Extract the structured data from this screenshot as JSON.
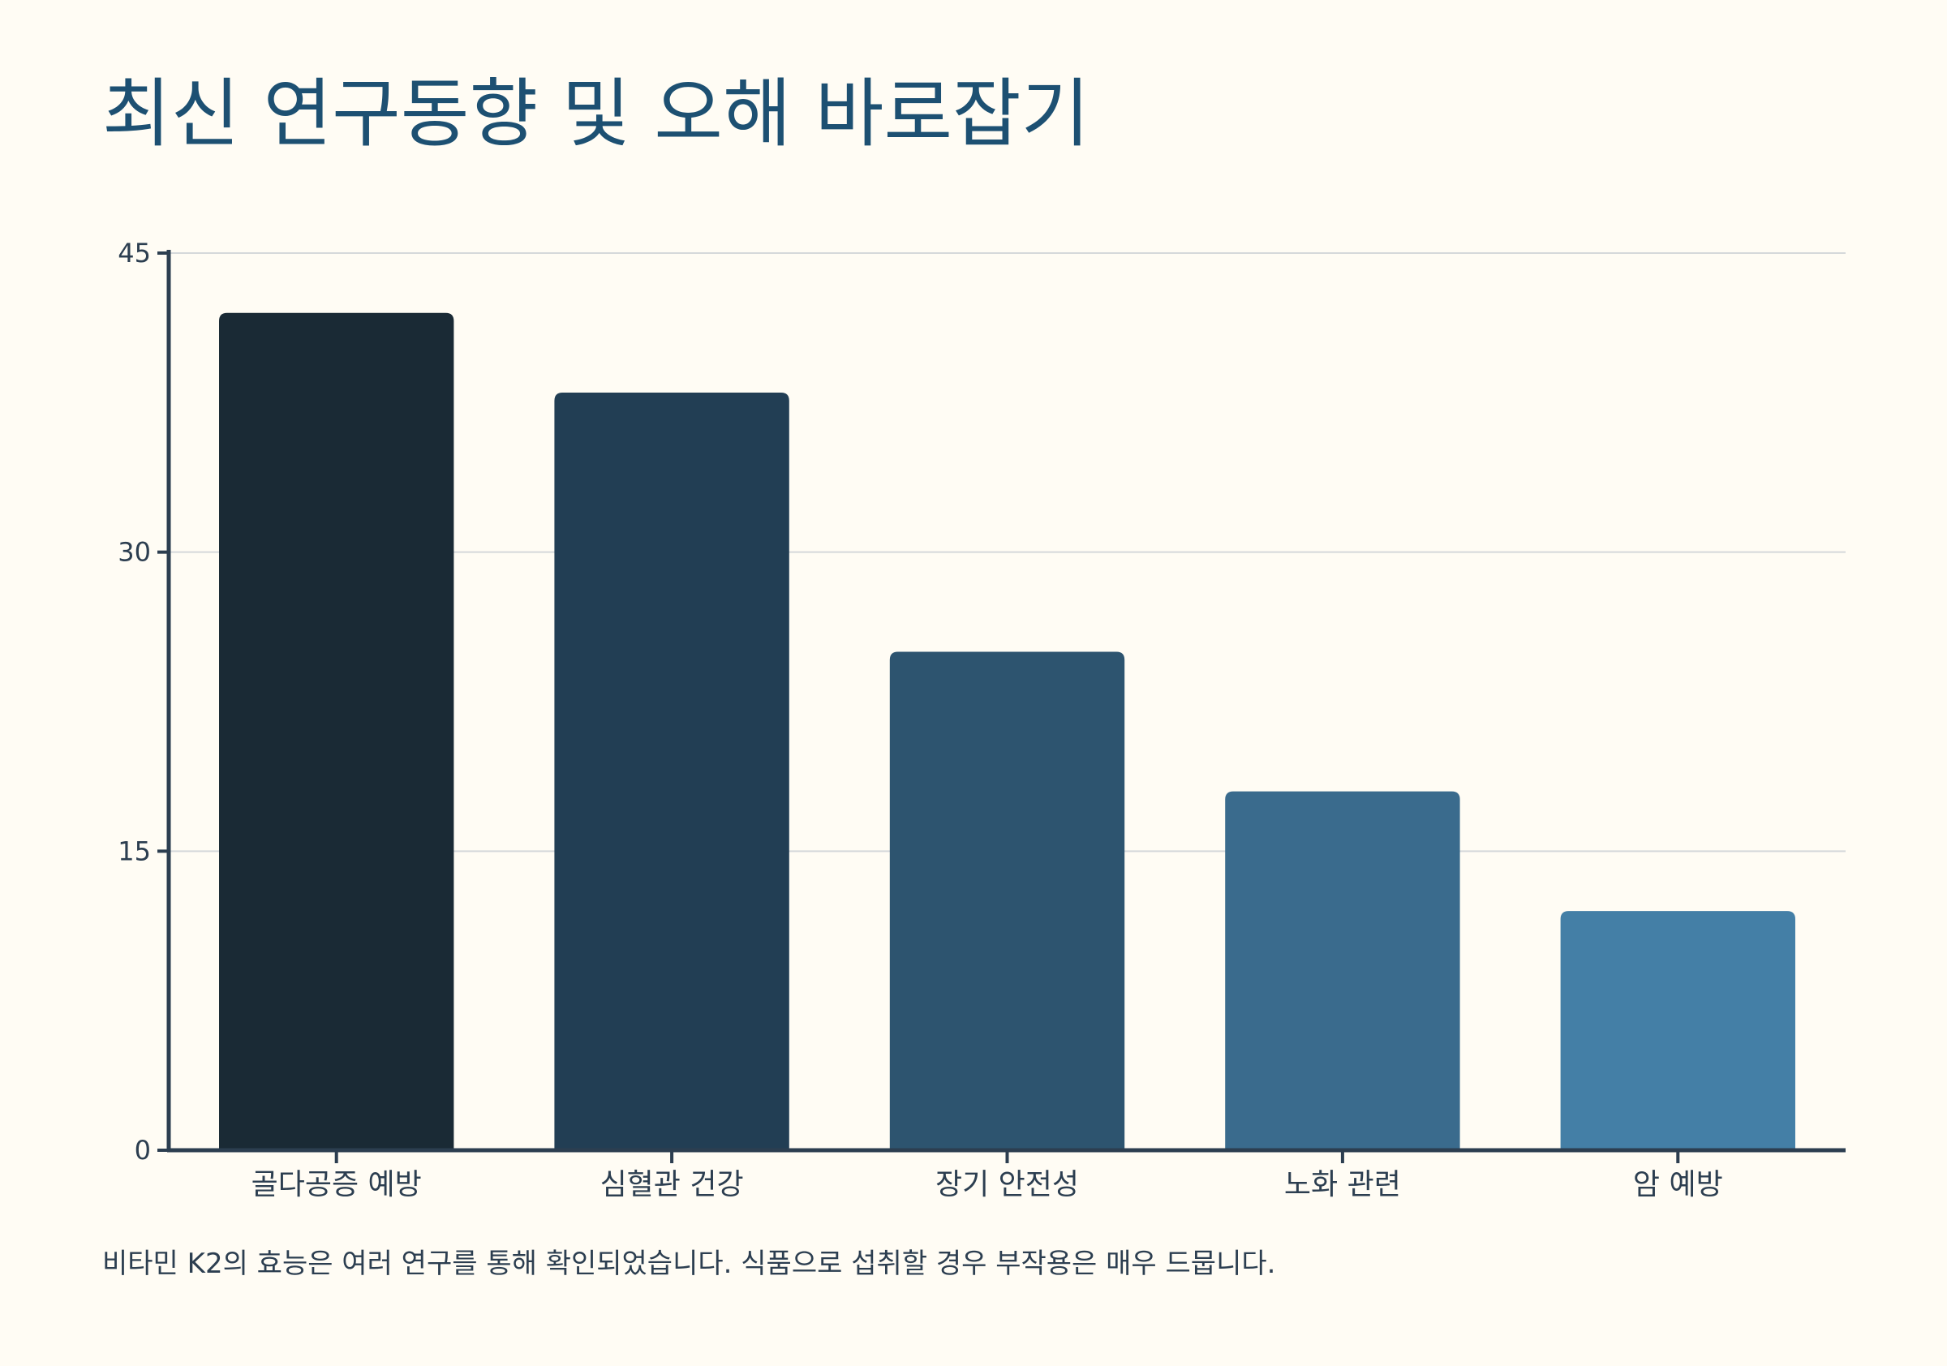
{
  "title": "최신 연구동향 및 오해 바로잡기",
  "note": "비타민 K2의 효능은 여러 연구를 통해 확인되었습니다. 식품으로 섭취할 경우 부작용은 매우 드뭅니다.",
  "colors": {
    "background": "#fffcf4",
    "title": "#1d5072",
    "axis": "#2c3e50",
    "grid": "#d5d8da",
    "tick_text": "#2c3e50",
    "bars": [
      "#1a2a35",
      "#223e54",
      "#2d546f",
      "#3a6b8d",
      "#447fa6"
    ]
  },
  "chart_data": {
    "type": "bar",
    "title": "최신 연구동향 및 오해 바로잡기",
    "categories": [
      "골다공증 예방",
      "심혈관 건강",
      "장기 안전성",
      "노화 관련",
      "암 예방"
    ],
    "values": [
      42,
      38,
      25,
      18,
      12
    ],
    "xlabel": "",
    "ylabel": "",
    "ylim": [
      0,
      45
    ],
    "yticks": [
      0,
      15,
      30,
      45
    ],
    "grid": true,
    "legend": "none"
  }
}
